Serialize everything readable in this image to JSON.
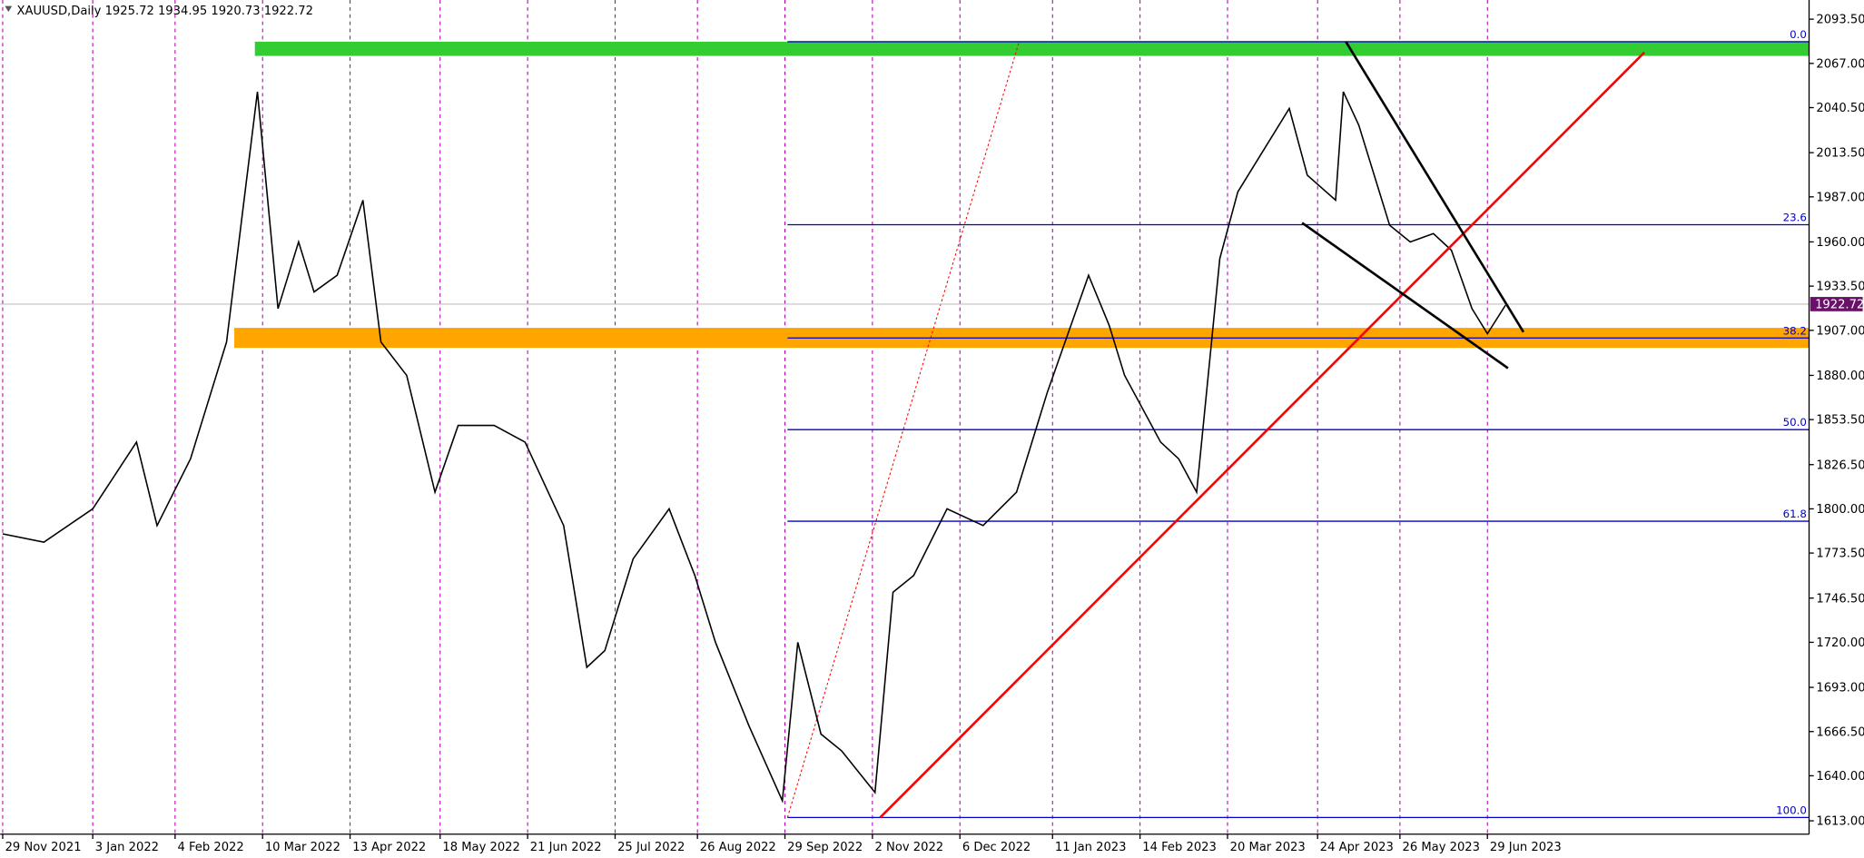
{
  "chart_data": {
    "type": "line",
    "symbol": "XAUUSD,Daily",
    "ohlc": [
      1925.72,
      1934.95,
      1920.73,
      1922.72
    ],
    "last_price": 1922.72,
    "color": "#000000",
    "x": [
      "2021-11-29",
      "2021-12-15",
      "2022-01-03",
      "2022-01-20",
      "2022-01-28",
      "2022-02-10",
      "2022-02-24",
      "2022-03-08",
      "2022-03-16",
      "2022-03-24",
      "2022-03-30",
      "2022-04-08",
      "2022-04-18",
      "2022-04-25",
      "2022-05-05",
      "2022-05-16",
      "2022-05-25",
      "2022-06-08",
      "2022-06-20",
      "2022-07-05",
      "2022-07-14",
      "2022-07-21",
      "2022-08-01",
      "2022-08-15",
      "2022-08-25",
      "2022-09-02",
      "2022-09-15",
      "2022-09-28",
      "2022-10-04",
      "2022-10-13",
      "2022-10-21",
      "2022-11-03",
      "2022-11-10",
      "2022-11-18",
      "2022-12-01",
      "2022-12-15",
      "2022-12-28",
      "2023-01-09",
      "2023-01-25",
      "2023-02-02",
      "2023-02-08",
      "2023-02-22",
      "2023-03-01",
      "2023-03-08",
      "2023-03-17",
      "2023-03-24",
      "2023-04-05",
      "2023-04-13",
      "2023-04-20",
      "2023-05-01",
      "2023-05-04",
      "2023-05-10",
      "2023-05-22",
      "2023-05-30",
      "2023-06-08",
      "2023-06-15",
      "2023-06-23",
      "2023-06-29",
      "2023-07-06"
    ],
    "values": [
      1785,
      1780,
      1800,
      1840,
      1790,
      1830,
      1900,
      2050,
      1920,
      1960,
      1930,
      1940,
      1985,
      1900,
      1880,
      1810,
      1850,
      1850,
      1840,
      1790,
      1705,
      1715,
      1770,
      1800,
      1760,
      1720,
      1670,
      1625,
      1720,
      1665,
      1655,
      1630,
      1750,
      1760,
      1800,
      1790,
      1810,
      1870,
      1940,
      1910,
      1880,
      1840,
      1830,
      1810,
      1950,
      1990,
      2020,
      2040,
      2000,
      1985,
      2050,
      2030,
      1970,
      1960,
      1965,
      1955,
      1920,
      1905,
      1922
    ],
    "xlim": [
      "2021-11-28",
      "2023-11-01"
    ],
    "ylim": [
      1605,
      2105
    ],
    "yticks": [
      {
        "value": 2093.5,
        "label": "2093.50"
      },
      {
        "value": 2067,
        "label": "2067.00"
      },
      {
        "value": 2040.5,
        "label": "2040.50"
      },
      {
        "value": 2013.5,
        "label": "2013.50"
      },
      {
        "value": 1987,
        "label": "1987.00"
      },
      {
        "value": 1960,
        "label": "1960.00"
      },
      {
        "value": 1933.5,
        "label": "1933.50"
      },
      {
        "value": 1907,
        "label": "1907.00"
      },
      {
        "value": 1880,
        "label": "1880.00"
      },
      {
        "value": 1853.5,
        "label": "1853.50"
      },
      {
        "value": 1826.5,
        "label": "1826.50"
      },
      {
        "value": 1800,
        "label": "1800.00"
      },
      {
        "value": 1773.5,
        "label": "1773.50"
      },
      {
        "value": 1746.5,
        "label": "1746.50"
      },
      {
        "value": 1720,
        "label": "1720.00"
      },
      {
        "value": 1693,
        "label": "1693.00"
      },
      {
        "value": 1666.5,
        "label": "1666.50"
      },
      {
        "value": 1640,
        "label": "1640.00"
      },
      {
        "value": 1613,
        "label": "1613.00"
      }
    ],
    "xticks": [
      {
        "value": "2021-11-29",
        "label": "29 Nov 2021"
      },
      {
        "value": "2022-01-03",
        "label": "3 Jan 2022"
      },
      {
        "value": "2022-02-04",
        "label": "4 Feb 2022"
      },
      {
        "value": "2022-03-10",
        "label": "10 Mar 2022"
      },
      {
        "value": "2022-04-13",
        "label": "13 Apr 2022"
      },
      {
        "value": "2022-05-18",
        "label": "18 May 2022"
      },
      {
        "value": "2022-06-21",
        "label": "21 Jun 2022"
      },
      {
        "value": "2022-07-25",
        "label": "25 Jul 2022"
      },
      {
        "value": "2022-08-26",
        "label": "26 Aug 2022"
      },
      {
        "value": "2022-09-29",
        "label": "29 Sep 2022"
      },
      {
        "value": "2022-11-02",
        "label": "2 Nov 2022"
      },
      {
        "value": "2022-12-06",
        "label": "6 Dec 2022"
      },
      {
        "value": "2023-01-11",
        "label": "11 Jan 2023"
      },
      {
        "value": "2023-02-14",
        "label": "14 Feb 2023"
      },
      {
        "value": "2023-03-20",
        "label": "20 Mar 2023"
      },
      {
        "value": "2023-04-24",
        "label": "24 Apr 2023"
      },
      {
        "value": "2023-05-26",
        "label": "26 May 2023"
      },
      {
        "value": "2023-06-29",
        "label": "29 Jun 2023"
      }
    ],
    "grid": true,
    "fibonacci": {
      "color": "#0000cd",
      "start": {
        "date": "2022-09-30",
        "price": 1615
      },
      "end": {
        "date": "2022-12-29",
        "price": 2080
      },
      "levels": [
        {
          "level": {
            "value": 0,
            "label": "0.0"
          },
          "price": 2080
        },
        {
          "level": {
            "value": 23.6,
            "label": "23.6"
          },
          "price": 1970.3
        },
        {
          "level": {
            "value": 38.2,
            "label": "38.2"
          },
          "price": 1902.4
        },
        {
          "level": {
            "value": 50,
            "label": "50.0"
          },
          "price": 1847.5
        },
        {
          "level": {
            "value": 61.8,
            "label": "61.8"
          },
          "price": 1792.6
        },
        {
          "level": {
            "value": 100,
            "label": "100.0"
          },
          "price": 1615
        }
      ]
    },
    "zones": [
      {
        "color": "#33cc33",
        "start": "2022-03-07",
        "top": 2080,
        "bottom": 2071.5
      },
      {
        "color": "#ffa500",
        "start": "2022-02-27",
        "top": 1908.5,
        "bottom": 1896.5
      }
    ],
    "trendlines": [
      {
        "color": "#ff0000",
        "from": {
          "date": "2022-11-05",
          "price": 1615
        },
        "to": {
          "date": "2023-08-29",
          "price": 2073.6
        }
      },
      {
        "color": "#000000",
        "from": {
          "date": "2023-05-05",
          "price": 2080
        },
        "to": {
          "date": "2023-07-13",
          "price": 1906
        }
      },
      {
        "color": "#000000",
        "from": {
          "date": "2023-04-18",
          "price": 1971.4
        },
        "to": {
          "date": "2023-07-07",
          "price": 1884.3
        }
      }
    ]
  }
}
